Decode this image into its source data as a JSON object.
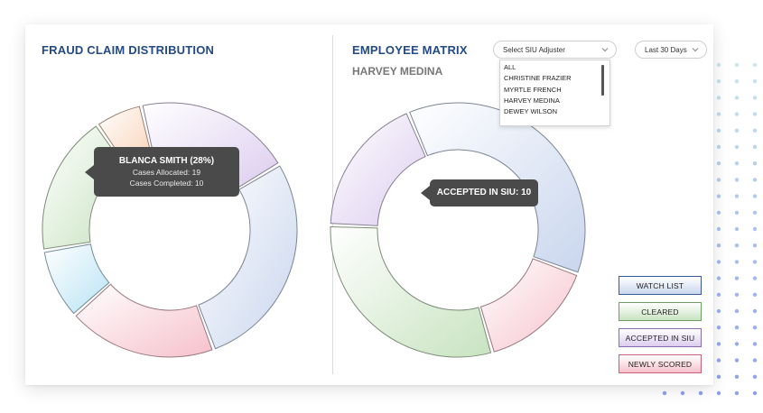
{
  "fraud_panel": {
    "title": "FRAUD CLAIM DISTRIBUTION",
    "tooltip": {
      "name": "BLANCA SMITH (28%)",
      "allocated": "Cases Allocated: 19",
      "completed": "Cases Completed: 10"
    }
  },
  "employee_panel": {
    "title": "EMPLOYEE MATRIX",
    "selected_employee": "HARVEY MEDINA",
    "adjuster_select": {
      "value": "Select SIU Adjuster",
      "options": [
        "ALL",
        "CHRISTINE FRAZIER",
        "MYRTLE FRENCH",
        "HARVEY MEDINA",
        "DEWEY WILSON"
      ]
    },
    "date_range": {
      "value": "Last 30 Days"
    },
    "tooltip": {
      "text": "ACCEPTED IN SIU: 10"
    }
  },
  "legend": [
    {
      "label": "WATCH LIST",
      "color": "#c9d6ee",
      "border": "#3a5a9a"
    },
    {
      "label": "CLEARED",
      "color": "#c8e3c0",
      "border": "#6d9f63"
    },
    {
      "label": "ACCEPTED IN SIU",
      "color": "#dccdef",
      "border": "#8a6ab5"
    },
    {
      "label": "NEWLY SCORED",
      "color": "#f6c1cc",
      "border": "#c8607a"
    }
  ],
  "chart_data": [
    {
      "type": "pie",
      "segments": [
        {
          "name": "BLANCA SMITH",
          "value": 28,
          "color": "#c9d6ee"
        },
        {
          "name": "",
          "value": 19,
          "color": "#f6c1cc"
        },
        {
          "name": "",
          "value": 9,
          "color": "#b9e3f5"
        },
        {
          "name": "",
          "value": 18,
          "color": "#c8e3c0"
        },
        {
          "name": "",
          "value": 6,
          "color": "#f9d3b8"
        },
        {
          "name": "",
          "value": 20,
          "color": "#dccdef"
        }
      ]
    },
    {
      "type": "pie",
      "segments": [
        {
          "name": "WATCH LIST",
          "value": 37,
          "color": "#c9d6ee"
        },
        {
          "name": "NEWLY SCORED",
          "value": 15,
          "color": "#f6c1cc"
        },
        {
          "name": "CLEARED",
          "value": 30,
          "color": "#c8e3c0"
        },
        {
          "name": "ACCEPTED IN SIU",
          "value": 18,
          "color": "#dccdef"
        }
      ]
    }
  ]
}
